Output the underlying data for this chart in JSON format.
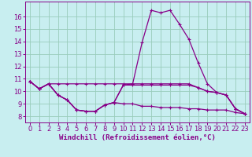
{
  "background_color": "#c8eef0",
  "line_color": "#880088",
  "grid_color": "#99ccbb",
  "xlabel": "Windchill (Refroidissement éolien,°C)",
  "xlabel_fontsize": 6.5,
  "tick_fontsize": 6.0,
  "xlim": [
    -0.5,
    23.5
  ],
  "ylim": [
    7.5,
    17.2
  ],
  "yticks": [
    8,
    9,
    10,
    11,
    12,
    13,
    14,
    15,
    16
  ],
  "xticks": [
    0,
    1,
    2,
    3,
    4,
    5,
    6,
    7,
    8,
    9,
    10,
    11,
    12,
    13,
    14,
    15,
    16,
    17,
    18,
    19,
    20,
    21,
    22,
    23
  ],
  "series": [
    {
      "x": [
        0,
        1,
        2,
        3,
        4,
        5,
        6,
        7,
        8,
        9,
        10,
        11,
        12,
        13,
        14,
        15,
        16,
        17,
        18,
        19,
        20,
        21,
        22,
        23
      ],
      "y": [
        10.8,
        10.2,
        10.6,
        9.7,
        9.3,
        8.5,
        8.4,
        8.4,
        8.9,
        9.1,
        10.5,
        10.6,
        13.9,
        16.5,
        16.3,
        16.5,
        15.4,
        14.2,
        12.3,
        10.6,
        9.9,
        9.7,
        8.6,
        8.2
      ],
      "marker": true
    },
    {
      "x": [
        0,
        1,
        2,
        3,
        4,
        5,
        6,
        7,
        8,
        9,
        10,
        11,
        12,
        13,
        14,
        15,
        16,
        17,
        18,
        19,
        20,
        21,
        22,
        23
      ],
      "y": [
        10.8,
        10.2,
        10.6,
        10.6,
        10.6,
        10.6,
        10.6,
        10.6,
        10.6,
        10.6,
        10.6,
        10.6,
        10.6,
        10.6,
        10.6,
        10.6,
        10.6,
        10.6,
        10.3,
        10.0,
        9.9,
        9.7,
        8.6,
        8.2
      ],
      "marker": true
    },
    {
      "x": [
        0,
        1,
        2,
        3,
        4,
        5,
        6,
        7,
        8,
        9,
        10,
        11,
        12,
        13,
        14,
        15,
        16,
        17,
        18,
        19,
        20,
        21,
        22,
        23
      ],
      "y": [
        10.8,
        10.2,
        10.6,
        9.7,
        9.3,
        8.5,
        8.4,
        8.4,
        8.9,
        9.1,
        10.5,
        10.5,
        10.5,
        10.5,
        10.5,
        10.5,
        10.5,
        10.5,
        10.3,
        10.0,
        9.9,
        9.7,
        8.6,
        8.2
      ],
      "marker": true
    },
    {
      "x": [
        0,
        1,
        2,
        3,
        4,
        5,
        6,
        7,
        8,
        9,
        10,
        11,
        12,
        13,
        14,
        15,
        16,
        17,
        18,
        19,
        20,
        21,
        22,
        23
      ],
      "y": [
        10.8,
        10.2,
        10.6,
        9.7,
        9.3,
        8.5,
        8.4,
        8.4,
        8.9,
        9.1,
        9.0,
        9.0,
        8.8,
        8.8,
        8.7,
        8.7,
        8.7,
        8.6,
        8.6,
        8.5,
        8.5,
        8.5,
        8.3,
        8.2
      ],
      "marker": true
    }
  ]
}
